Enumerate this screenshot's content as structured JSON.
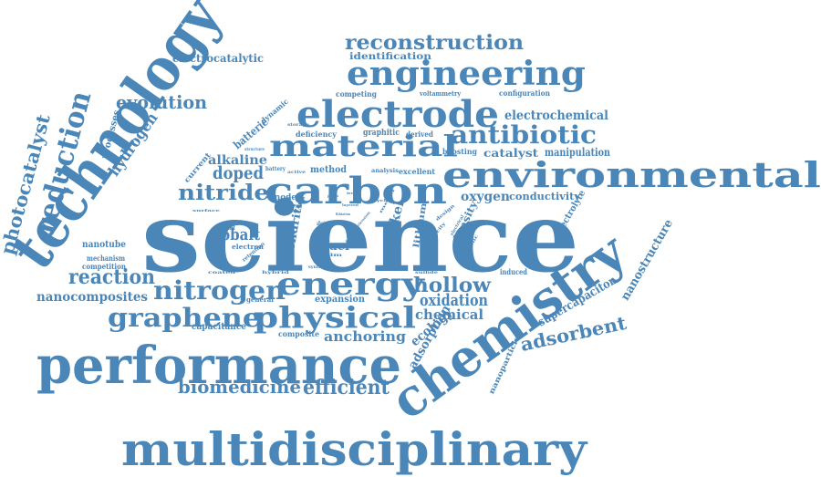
{
  "colors": {
    "word": "#4a86b8",
    "background": "#ffffff"
  },
  "words": [
    {
      "text": "science"
    },
    {
      "text": "technology"
    },
    {
      "text": "chemistry"
    },
    {
      "text": "multidisciplinary"
    },
    {
      "text": "performance"
    },
    {
      "text": "environmental"
    },
    {
      "text": "engineering"
    },
    {
      "text": "electrode"
    },
    {
      "text": "material"
    },
    {
      "text": "carbon"
    },
    {
      "text": "energy"
    },
    {
      "text": "physical"
    },
    {
      "text": "reduction"
    },
    {
      "text": "photocatalyst"
    },
    {
      "text": "reconstruction"
    },
    {
      "text": "graphene"
    },
    {
      "text": "nitrogen"
    },
    {
      "text": "antibiotic"
    },
    {
      "text": "evolution"
    },
    {
      "text": "hydrogen"
    },
    {
      "text": "nitride"
    },
    {
      "text": "doped"
    },
    {
      "text": "alkaline"
    },
    {
      "text": "cobalt"
    },
    {
      "text": "hollow"
    },
    {
      "text": "oxidation"
    },
    {
      "text": "chemical"
    },
    {
      "text": "adsorbent"
    },
    {
      "text": "supercapacitor"
    },
    {
      "text": "nanostructure"
    },
    {
      "text": "efficient"
    },
    {
      "text": "biomedicine"
    },
    {
      "text": "reaction"
    },
    {
      "text": "nanocomposites"
    },
    {
      "text": "anchoring"
    },
    {
      "text": "electrochemical"
    },
    {
      "text": "electrocatalytic"
    },
    {
      "text": "identification"
    },
    {
      "text": "oxygen"
    },
    {
      "text": "conductivity"
    },
    {
      "text": "manipulation"
    },
    {
      "text": "catalyst"
    },
    {
      "text": "boosting"
    },
    {
      "text": "method"
    },
    {
      "text": "deficiency"
    },
    {
      "text": "graphitic"
    },
    {
      "text": "derived"
    },
    {
      "text": "competing"
    },
    {
      "text": "voltammetry"
    },
    {
      "text": "configuration"
    },
    {
      "text": "dynamic"
    },
    {
      "text": "batterie"
    },
    {
      "text": "processes"
    },
    {
      "text": "current"
    },
    {
      "text": "nanotube"
    },
    {
      "text": "mechanism"
    },
    {
      "text": "competition"
    },
    {
      "text": "capacitance"
    },
    {
      "text": "expansion"
    },
    {
      "text": "composite"
    },
    {
      "text": "general"
    },
    {
      "text": "fuel"
    },
    {
      "text": "nickel"
    },
    {
      "text": "lithium"
    },
    {
      "text": "density"
    },
    {
      "text": "electrolyte"
    },
    {
      "text": "dendritic"
    },
    {
      "text": "anode"
    },
    {
      "text": "ecology"
    },
    {
      "text": "adsorption"
    },
    {
      "text": "nanoparticles"
    },
    {
      "text": "induced"
    },
    {
      "text": "analysis"
    },
    {
      "text": "excellent"
    },
    {
      "text": "electron"
    },
    {
      "text": "battery"
    },
    {
      "text": "storage"
    },
    {
      "text": "structure"
    },
    {
      "text": "oxidant"
    },
    {
      "text": "coated"
    },
    {
      "text": "retention"
    },
    {
      "text": "hybrid"
    },
    {
      "text": "alleviate"
    },
    {
      "text": "film"
    },
    {
      "text": "ncnts"
    },
    {
      "text": "life"
    },
    {
      "text": "active"
    },
    {
      "text": "design"
    },
    {
      "text": "sulfide"
    },
    {
      "text": "specific"
    },
    {
      "text": "electrical"
    },
    {
      "text": "capacity"
    },
    {
      "text": "synthesis"
    },
    {
      "text": "surface"
    },
    {
      "text": "lithiation"
    },
    {
      "text": "cycle"
    },
    {
      "text": "metal"
    },
    {
      "text": "heteroatom"
    },
    {
      "text": "layered"
    },
    {
      "text": "porous"
    },
    {
      "text": "iron"
    },
    {
      "text": "mof"
    }
  ]
}
